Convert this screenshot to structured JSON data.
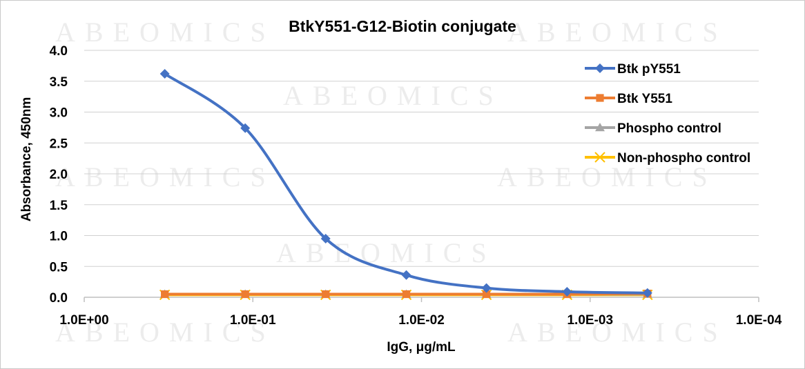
{
  "chart_data": {
    "type": "line",
    "title": "BtkY551-G12-Biotin conjugate",
    "xlabel": "IgG, μg/mL",
    "ylabel": "Absorbance, 450nm",
    "x_scale": "log-reversed",
    "xlim": [
      1,
      0.0001
    ],
    "ylim": [
      0,
      4
    ],
    "x_ticks": [
      "1.0E+00",
      "1.0E-01",
      "1.0E-02",
      "1.0E-03",
      "1.0E-04"
    ],
    "y_ticks": [
      "0.0",
      "0.5",
      "1.0",
      "1.5",
      "2.0",
      "2.5",
      "3.0",
      "3.5",
      "4.0"
    ],
    "x": [
      0.333,
      0.111,
      0.037,
      0.0123,
      0.00412,
      0.00137,
      0.000457
    ],
    "series": [
      {
        "name": "Btk pY551",
        "color": "#4472C4",
        "marker": "diamond",
        "values": [
          3.62,
          2.74,
          0.95,
          0.36,
          0.15,
          0.09,
          0.07
        ]
      },
      {
        "name": "Btk Y551",
        "color": "#ED7D31",
        "marker": "square",
        "values": [
          0.05,
          0.05,
          0.05,
          0.05,
          0.05,
          0.05,
          0.06
        ]
      },
      {
        "name": "Phospho control",
        "color": "#A5A5A5",
        "marker": "triangle",
        "values": [
          0.05,
          0.05,
          0.05,
          0.05,
          0.05,
          0.05,
          0.05
        ]
      },
      {
        "name": "Non-phospho control",
        "color": "#FFC000",
        "marker": "x",
        "values": [
          0.04,
          0.04,
          0.04,
          0.04,
          0.04,
          0.04,
          0.04
        ]
      }
    ],
    "grid": "horizontal",
    "legend": "right"
  },
  "watermark": "ABEOMICS"
}
